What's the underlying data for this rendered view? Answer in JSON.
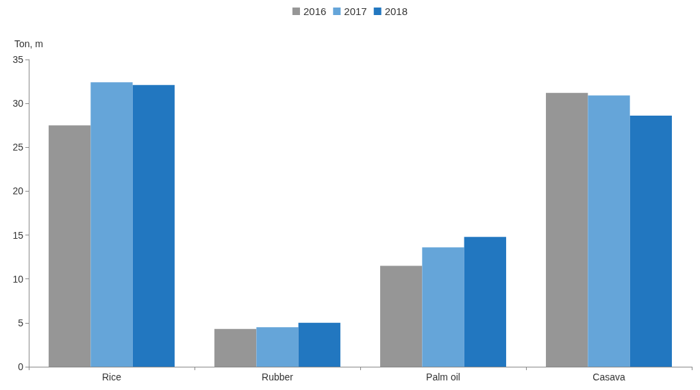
{
  "chart_data": {
    "type": "bar",
    "ylabel": "Ton, m",
    "categories": [
      "Rice",
      "Rubber",
      "Palm oil",
      "Casava"
    ],
    "series": [
      {
        "name": "2016",
        "color": "#969696",
        "values": [
          27.5,
          4.3,
          11.5,
          31.2
        ]
      },
      {
        "name": "2017",
        "color": "#65a5d9",
        "values": [
          32.4,
          4.5,
          13.6,
          30.9
        ]
      },
      {
        "name": "2018",
        "color": "#2277c0",
        "values": [
          32.1,
          5.0,
          14.8,
          28.6
        ]
      }
    ],
    "ylim": [
      0,
      35
    ],
    "yticks": [
      0,
      5,
      10,
      15,
      20,
      25,
      30,
      35
    ],
    "grid": false,
    "legend": "top"
  }
}
